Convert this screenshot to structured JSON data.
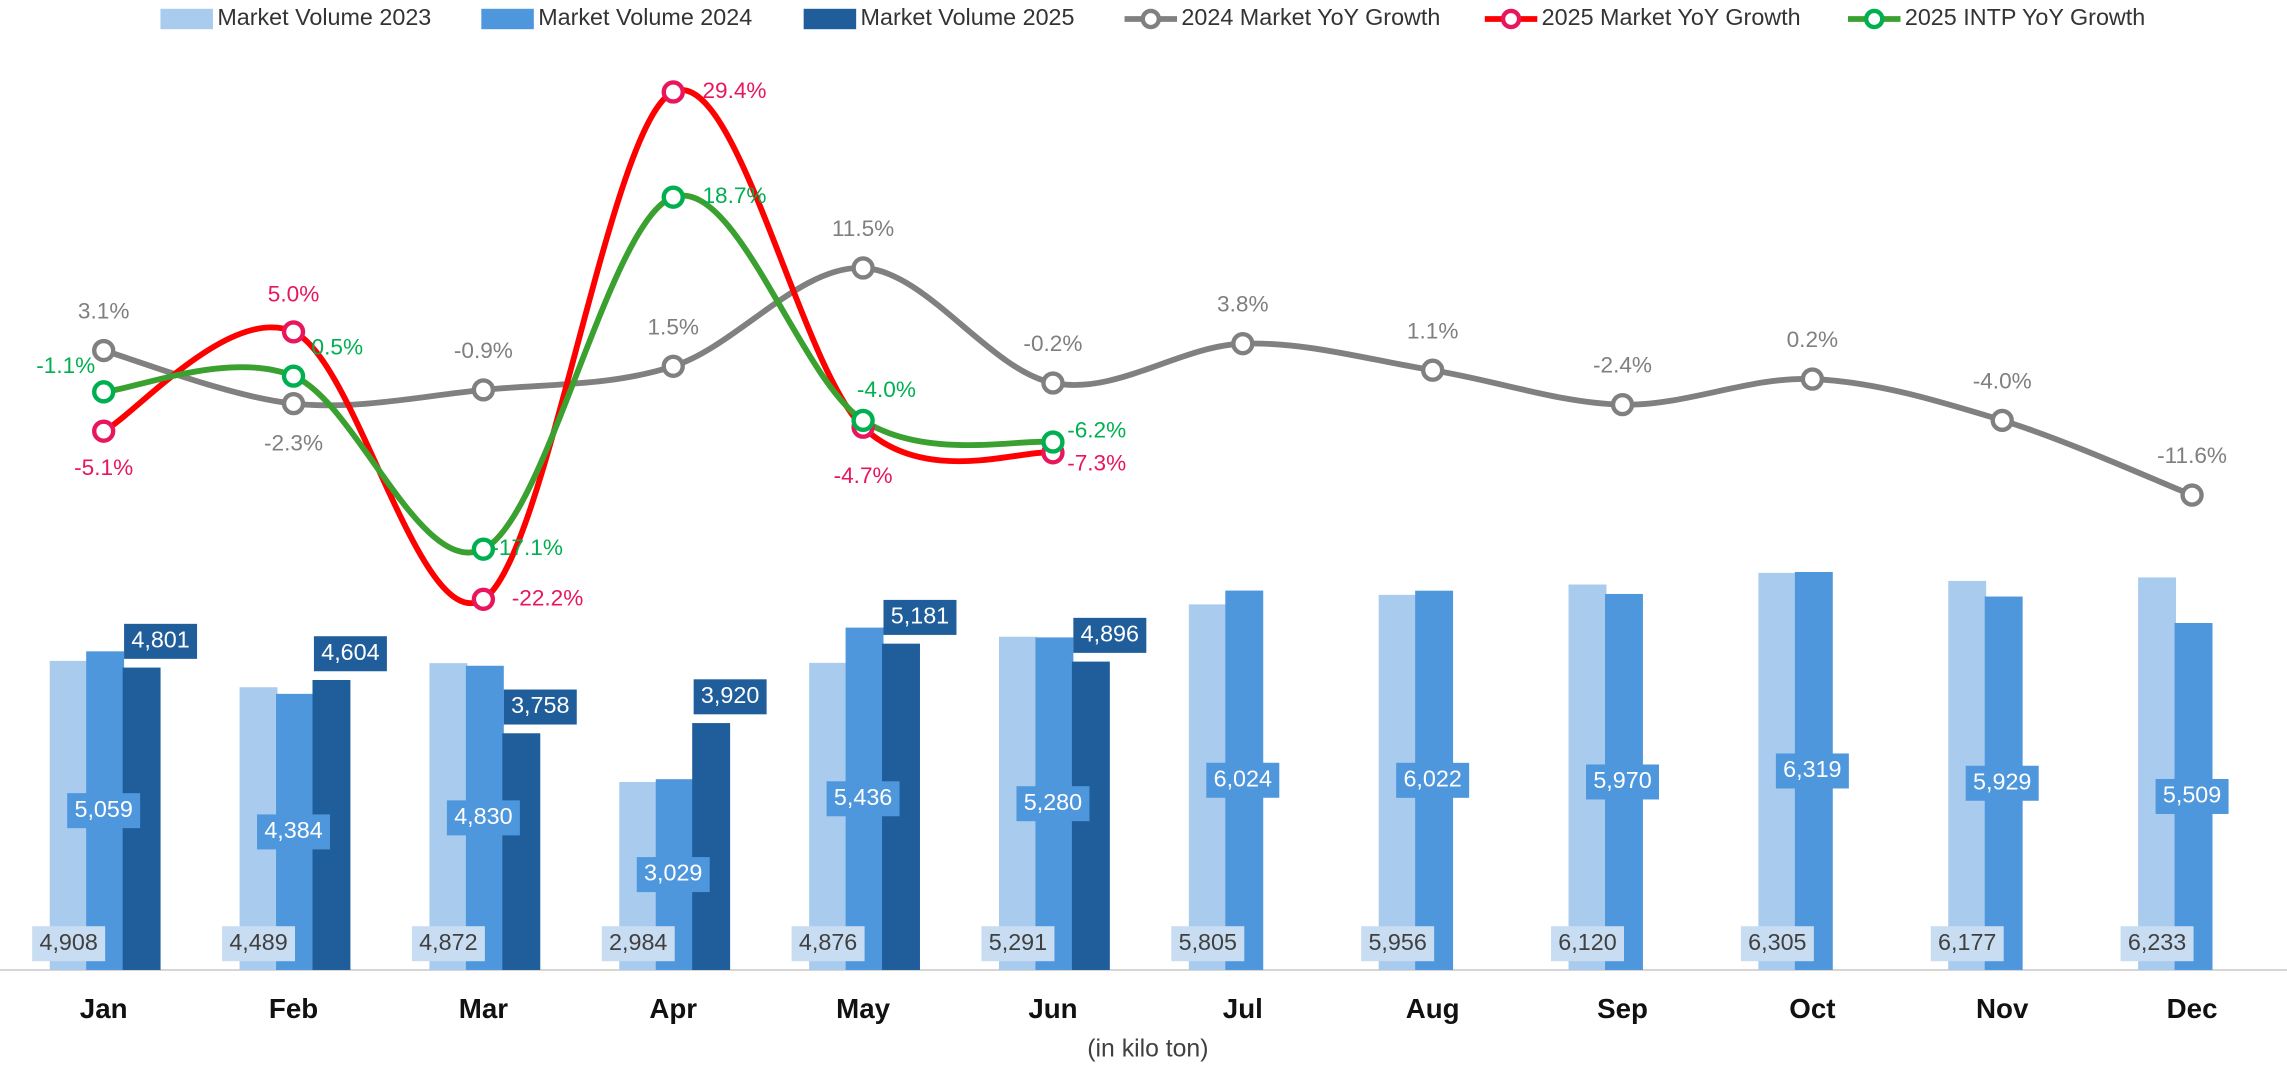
{
  "chart_data": {
    "type": "bar",
    "x_label": "(in kilo ton)",
    "categories": [
      "Jan",
      "Feb",
      "Mar",
      "Apr",
      "May",
      "Jun",
      "Jul",
      "Aug",
      "Sep",
      "Oct",
      "Nov",
      "Dec"
    ],
    "ylim": [
      0,
      15400
    ],
    "y2lim": [
      -59.9,
      38.75
    ],
    "legend": "top",
    "series": [
      {
        "name": "Market Volume 2023",
        "type": "bar",
        "color": "#a9cbee",
        "values": [
          4908,
          4489,
          4872,
          2984,
          4876,
          5291,
          5805,
          5956,
          6120,
          6305,
          6177,
          6233
        ],
        "value_labels": [
          "4,908",
          "4,489",
          "4,872",
          "2,984",
          "4,876",
          "5,291",
          "5,805",
          "5,956",
          "6,120",
          "6,305",
          "6,177",
          "6,233"
        ]
      },
      {
        "name": "Market Volume 2024",
        "type": "bar",
        "color": "#4f97dc",
        "values": [
          5059,
          4384,
          4830,
          3029,
          5436,
          5280,
          6024,
          6022,
          5970,
          6319,
          5929,
          5509
        ],
        "value_labels": [
          "5,059",
          "4,384",
          "4,830",
          "3,029",
          "5,436",
          "5,280",
          "6,024",
          "6,022",
          "5,970",
          "6,319",
          "5,929",
          "5,509"
        ]
      },
      {
        "name": "Market Volume 2025",
        "type": "bar",
        "color": "#1f5d9b",
        "values": [
          4801,
          4604,
          3758,
          3920,
          5181,
          4896,
          null,
          null,
          null,
          null,
          null,
          null
        ],
        "value_labels": [
          "4,801",
          "4,604",
          "3,758",
          "3,920",
          "5,181",
          "4,896",
          null,
          null,
          null,
          null,
          null,
          null
        ]
      },
      {
        "name": "2024 Market YoY Growth",
        "type": "line",
        "axis": "y2",
        "color": "#808080",
        "marker_color": "#808080",
        "values": [
          3.1,
          -2.3,
          -0.9,
          1.5,
          11.5,
          -0.2,
          3.8,
          1.1,
          -2.4,
          0.2,
          -4.0,
          -11.6
        ],
        "value_labels": [
          "3.1%",
          "-2.3%",
          "-0.9%",
          "1.5%",
          "11.5%",
          "-0.2%",
          "3.8%",
          "1.1%",
          "-2.4%",
          "0.2%",
          "-4.0%",
          "-11.6%"
        ]
      },
      {
        "name": "2025 Market YoY Growth",
        "type": "line",
        "axis": "y2",
        "color": "#ff0000",
        "marker_color": "#e8175d",
        "values": [
          -5.1,
          5.0,
          -22.2,
          29.4,
          -4.7,
          -7.3,
          null,
          null,
          null,
          null,
          null,
          null
        ],
        "value_labels": [
          "-5.1%",
          "5.0%",
          "-22.2%",
          "29.4%",
          "-4.7%",
          "-7.3%",
          null,
          null,
          null,
          null,
          null,
          null
        ]
      },
      {
        "name": "2025 INTP YoY Growth",
        "type": "line",
        "axis": "y2",
        "color": "#3aa02f",
        "marker_color": "#00b050",
        "values": [
          -1.1,
          0.5,
          -17.1,
          18.7,
          -4.0,
          -6.2,
          null,
          null,
          null,
          null,
          null,
          null
        ],
        "value_labels": [
          "-1.1%",
          "0.5%",
          "-17.1%",
          "18.7%",
          "-4.0%",
          "-6.2%",
          null,
          null,
          null,
          null,
          null,
          null
        ]
      }
    ]
  }
}
